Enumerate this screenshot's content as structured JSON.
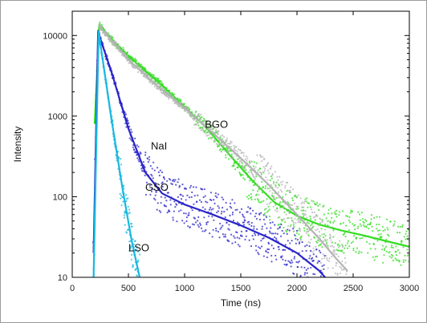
{
  "chart_data": {
    "type": "scatter",
    "title": "",
    "xlabel": "Time (ns)",
    "ylabel": "Intensity",
    "xlim": [
      0,
      3000
    ],
    "ylim": [
      10,
      20000
    ],
    "yscale": "log",
    "grid": false,
    "x_ticks": [
      {
        "value": 0,
        "label": "0"
      },
      {
        "value": 500,
        "label": "500"
      },
      {
        "value": 1000,
        "label": "1000"
      },
      {
        "value": 1500,
        "label": "1500"
      },
      {
        "value": 2000,
        "label": "2000"
      },
      {
        "value": 2500,
        "label": "2500"
      },
      {
        "value": 3000,
        "label": "3000"
      }
    ],
    "y_ticks": [
      {
        "value": 10,
        "label": "10"
      },
      {
        "value": 100,
        "label": "100"
      },
      {
        "value": 1000,
        "label": "1000"
      },
      {
        "value": 10000,
        "label": "10000"
      }
    ],
    "series": [
      {
        "name": "NaI",
        "color": "#33dd22",
        "points": [
          [
            200,
            800
          ],
          [
            240,
            13500
          ],
          [
            400,
            7500
          ],
          [
            600,
            4200
          ],
          [
            800,
            2400
          ],
          [
            1000,
            1300
          ],
          [
            1200,
            700
          ],
          [
            1400,
            330
          ],
          [
            1600,
            160
          ],
          [
            1800,
            85
          ],
          [
            2000,
            58
          ],
          [
            2200,
            45
          ],
          [
            2400,
            38
          ],
          [
            2600,
            33
          ],
          [
            2800,
            28
          ],
          [
            3000,
            24
          ]
        ]
      },
      {
        "name": "BGO",
        "color": "#b4b4b4",
        "points": [
          [
            240,
            13000
          ],
          [
            500,
            5000
          ],
          [
            750,
            2400
          ],
          [
            1000,
            1250
          ],
          [
            1250,
            620
          ],
          [
            1500,
            300
          ],
          [
            1750,
            140
          ],
          [
            2000,
            60
          ],
          [
            2200,
            30
          ],
          [
            2350,
            17
          ],
          [
            2450,
            12
          ]
        ]
      },
      {
        "name": "GSO",
        "color": "#2a24c8",
        "points": [
          [
            190,
            20
          ],
          [
            230,
            11000
          ],
          [
            350,
            3500
          ],
          [
            500,
            700
          ],
          [
            650,
            200
          ],
          [
            800,
            110
          ],
          [
            1000,
            80
          ],
          [
            1250,
            60
          ],
          [
            1500,
            44
          ],
          [
            1750,
            31
          ],
          [
            2000,
            20
          ],
          [
            2200,
            12
          ],
          [
            2250,
            10
          ]
        ]
      },
      {
        "name": "LSO",
        "color": "#1ab8e0",
        "points": [
          [
            190,
            10
          ],
          [
            215,
            500
          ],
          [
            235,
            11000
          ],
          [
            350,
            900
          ],
          [
            450,
            120
          ],
          [
            530,
            28
          ],
          [
            600,
            10
          ]
        ]
      }
    ],
    "annotations": [
      {
        "text": "NaI",
        "x": 700,
        "y": 420
      },
      {
        "text": "BGO",
        "x": 1180,
        "y": 780
      },
      {
        "text": "GSO",
        "x": 650,
        "y": 130
      },
      {
        "text": "LSO",
        "x": 500,
        "y": 23
      }
    ]
  }
}
